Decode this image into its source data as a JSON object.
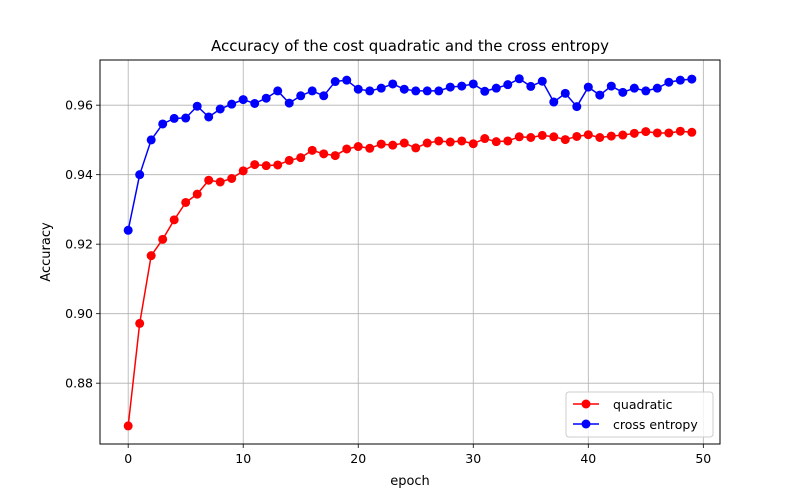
{
  "chart_data": {
    "type": "line",
    "title": "Accuracy of the cost quadratic and the cross entropy",
    "xlabel": "epoch",
    "ylabel": "Accuracy",
    "xlim": [
      -2.45,
      51.45
    ],
    "ylim": [
      0.8625,
      0.973
    ],
    "xticks": [
      0,
      10,
      20,
      30,
      40,
      50
    ],
    "yticks": [
      0.88,
      0.9,
      0.92,
      0.94,
      0.96
    ],
    "ytick_labels": [
      "0.88",
      "0.90",
      "0.92",
      "0.94",
      "0.96"
    ],
    "grid": true,
    "legend_position": "lower-right",
    "x": [
      0,
      1,
      2,
      3,
      4,
      5,
      6,
      7,
      8,
      9,
      10,
      11,
      12,
      13,
      14,
      15,
      16,
      17,
      18,
      19,
      20,
      21,
      22,
      23,
      24,
      25,
      26,
      27,
      28,
      29,
      30,
      31,
      32,
      33,
      34,
      35,
      36,
      37,
      38,
      39,
      40,
      41,
      42,
      43,
      44,
      45,
      46,
      47,
      48,
      49
    ],
    "series": [
      {
        "name": "quadratic",
        "color": "#ff0000",
        "values": [
          0.8677,
          0.8972,
          0.9167,
          0.9214,
          0.927,
          0.932,
          0.9344,
          0.9384,
          0.9379,
          0.9389,
          0.9411,
          0.9429,
          0.9426,
          0.9428,
          0.9441,
          0.9449,
          0.947,
          0.946,
          0.9455,
          0.9474,
          0.9481,
          0.9476,
          0.9488,
          0.9485,
          0.9491,
          0.9477,
          0.9491,
          0.9497,
          0.9494,
          0.9497,
          0.9489,
          0.9504,
          0.9495,
          0.9497,
          0.9509,
          0.9507,
          0.9513,
          0.9509,
          0.9501,
          0.951,
          0.9515,
          0.9507,
          0.9511,
          0.9514,
          0.9519,
          0.9524,
          0.952,
          0.952,
          0.9525,
          0.9522
        ]
      },
      {
        "name": "cross entropy",
        "color": "#0000ff",
        "values": [
          0.924,
          0.94,
          0.95,
          0.9546,
          0.9562,
          0.9563,
          0.9597,
          0.9566,
          0.9589,
          0.9603,
          0.9616,
          0.9605,
          0.962,
          0.9641,
          0.9606,
          0.9627,
          0.9641,
          0.9627,
          0.9668,
          0.9672,
          0.9646,
          0.9641,
          0.9649,
          0.9661,
          0.9646,
          0.9641,
          0.9641,
          0.9641,
          0.9652,
          0.9655,
          0.9661,
          0.964,
          0.9649,
          0.9659,
          0.9676,
          0.9654,
          0.9669,
          0.9609,
          0.9634,
          0.9596,
          0.9652,
          0.9629,
          0.9655,
          0.9637,
          0.9649,
          0.9641,
          0.9649,
          0.9666,
          0.9672,
          0.9675
        ]
      }
    ]
  }
}
